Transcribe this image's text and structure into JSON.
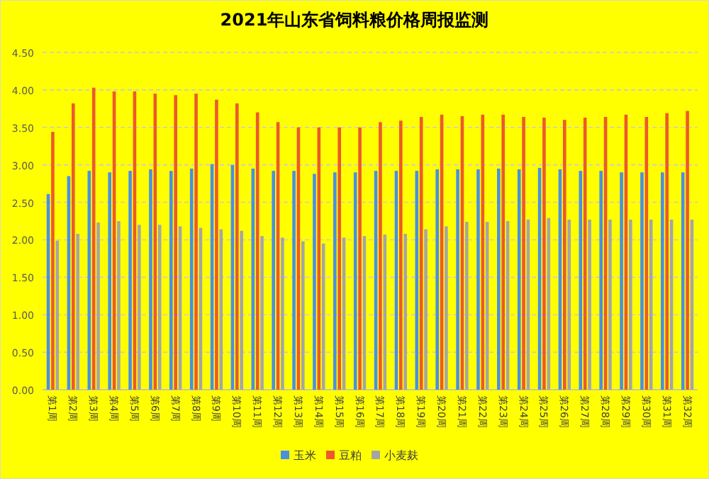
{
  "chart_data": {
    "type": "bar",
    "title": "2021年山东省饲料粮价格周报监测",
    "categories": [
      "第1周",
      "第2周",
      "第3周",
      "第4周",
      "第5周",
      "第6周",
      "第7周",
      "第8周",
      "第9周",
      "第10周",
      "第11周",
      "第12周",
      "第13周",
      "第14周",
      "第15周",
      "第16周",
      "第17周",
      "第18周",
      "第19周",
      "第20周",
      "第21周",
      "第22周",
      "第23周",
      "第24周",
      "第25周",
      "第26周",
      "第27周",
      "第28周",
      "第29周",
      "第30周",
      "第31周",
      "第32周"
    ],
    "series": [
      {
        "name": "玉米",
        "color": "#4a90e2",
        "values": [
          2.61,
          2.85,
          2.92,
          2.9,
          2.92,
          2.94,
          2.92,
          2.95,
          3.01,
          3.0,
          2.95,
          2.92,
          2.92,
          2.88,
          2.9,
          2.9,
          2.92,
          2.92,
          2.92,
          2.94,
          2.94,
          2.94,
          2.95,
          2.94,
          2.96,
          2.94,
          2.92,
          2.92,
          2.9,
          2.9,
          2.9,
          2.9
        ]
      },
      {
        "name": "豆粕",
        "color": "#ed5a2a",
        "values": [
          3.44,
          3.82,
          4.03,
          3.98,
          3.98,
          3.95,
          3.93,
          3.95,
          3.87,
          3.82,
          3.7,
          3.57,
          3.5,
          3.5,
          3.5,
          3.5,
          3.57,
          3.59,
          3.64,
          3.67,
          3.65,
          3.67,
          3.67,
          3.64,
          3.63,
          3.6,
          3.63,
          3.64,
          3.67,
          3.64,
          3.69,
          3.72
        ]
      },
      {
        "name": "小麦麸",
        "color": "#a5a5a5",
        "values": [
          1.99,
          2.08,
          2.23,
          2.25,
          2.2,
          2.2,
          2.18,
          2.16,
          2.14,
          2.12,
          2.05,
          2.03,
          1.98,
          1.95,
          2.03,
          2.05,
          2.07,
          2.08,
          2.14,
          2.18,
          2.24,
          2.24,
          2.25,
          2.27,
          2.29,
          2.27,
          2.27,
          2.27,
          2.27,
          2.27,
          2.27,
          2.27
        ]
      }
    ],
    "ylim": [
      0,
      4.5
    ],
    "yticks": [
      {
        "value": 0,
        "label": "0.00"
      },
      {
        "value": 0.5,
        "label": "0.50"
      },
      {
        "value": 1,
        "label": "1.00"
      },
      {
        "value": 1.5,
        "label": "1.50"
      },
      {
        "value": 2,
        "label": "2.00"
      },
      {
        "value": 2.5,
        "label": "2.50"
      },
      {
        "value": 3,
        "label": "3.00"
      },
      {
        "value": 3.5,
        "label": "3.50"
      },
      {
        "value": 4,
        "label": "4.00"
      },
      {
        "value": 4.5,
        "label": "4.50"
      }
    ],
    "grid": "y",
    "legend": "bottom"
  }
}
